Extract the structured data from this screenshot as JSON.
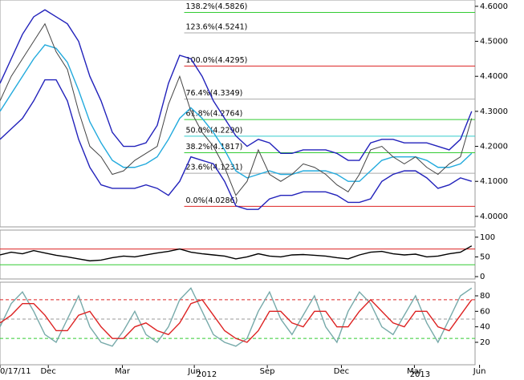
{
  "chart_data": [
    {
      "type": "line",
      "xlim": [
        0,
        42.3
      ],
      "ylim": [
        3.97,
        4.618
      ],
      "yticks": [
        {
          "value": 4.0,
          "label": "4.0000"
        },
        {
          "value": 4.1,
          "label": "4.1000"
        },
        {
          "value": 4.2,
          "label": "4.2000"
        },
        {
          "value": 4.3,
          "label": "4.3000"
        },
        {
          "value": 4.4,
          "label": "4.4000"
        },
        {
          "value": 4.5,
          "label": "4.5000"
        },
        {
          "value": 4.6,
          "label": "4.6000"
        }
      ],
      "xticks": [
        {
          "value": 0,
          "label": "0/17/11"
        },
        {
          "value": 4.3,
          "label": "Dec"
        },
        {
          "value": 10.9,
          "label": "Mar"
        },
        {
          "value": 17.3,
          "label": "Jun"
        },
        {
          "value": 23.8,
          "label": "Sep"
        },
        {
          "value": 30.4,
          "label": "Dec"
        },
        {
          "value": 36.9,
          "label": "Mar"
        },
        {
          "value": 42.7,
          "label": "Jun"
        }
      ],
      "xticks2": [
        {
          "value": 18.4,
          "label": "2012"
        },
        {
          "value": 37.4,
          "label": "2013"
        }
      ],
      "fib_start_x": 16.4,
      "fib_levels": [
        {
          "value": 4.5826,
          "label": "138.2%(4.5826)",
          "color": "#33cc33"
        },
        {
          "value": 4.5241,
          "label": "123.6%(4.5241)",
          "color": "#aaaaaa"
        },
        {
          "value": 4.4295,
          "label": "100.0%(4.4295)",
          "color": "#dd2222"
        },
        {
          "value": 4.3349,
          "label": "76.4%(4.3349)",
          "color": "#aaaaaa"
        },
        {
          "value": 4.2764,
          "label": "61.8%(4.2764)",
          "color": "#33cc33"
        },
        {
          "value": 4.229,
          "label": "50.0%(4.2290)",
          "color": "#33cccc"
        },
        {
          "value": 4.1817,
          "label": "38.2%(4.1817)",
          "color": "#33cc33"
        },
        {
          "value": 4.1231,
          "label": "23.6%(4.1231)",
          "color": "#aaaaaa"
        },
        {
          "value": 4.0286,
          "label": "0.0%(4.0286)",
          "color": "#dd2222"
        }
      ],
      "series": [
        {
          "color": "#2222bb",
          "values": [
            4.38,
            4.45,
            4.52,
            4.57,
            4.59,
            4.57,
            4.55,
            4.5,
            4.4,
            4.33,
            4.24,
            4.2,
            4.2,
            4.21,
            4.26,
            4.38,
            4.46,
            4.45,
            4.4,
            4.33,
            4.28,
            4.23,
            4.2,
            4.22,
            4.21,
            4.18,
            4.18,
            4.19,
            4.19,
            4.19,
            4.18,
            4.16,
            4.16,
            4.21,
            4.22,
            4.22,
            4.21,
            4.21,
            4.21,
            4.2,
            4.19,
            4.22,
            4.3
          ]
        },
        {
          "color": "#2222bb",
          "values": [
            4.22,
            4.25,
            4.28,
            4.33,
            4.39,
            4.39,
            4.33,
            4.22,
            4.14,
            4.09,
            4.08,
            4.08,
            4.08,
            4.09,
            4.08,
            4.06,
            4.1,
            4.17,
            4.16,
            4.15,
            4.1,
            4.03,
            4.02,
            4.02,
            4.05,
            4.06,
            4.06,
            4.07,
            4.07,
            4.07,
            4.06,
            4.04,
            4.04,
            4.05,
            4.1,
            4.12,
            4.13,
            4.13,
            4.11,
            4.08,
            4.09,
            4.11,
            4.1
          ]
        },
        {
          "color": "#22aadd",
          "values": [
            4.3,
            4.35,
            4.4,
            4.45,
            4.49,
            4.48,
            4.44,
            4.36,
            4.27,
            4.21,
            4.16,
            4.14,
            4.14,
            4.15,
            4.17,
            4.22,
            4.28,
            4.31,
            4.28,
            4.24,
            4.19,
            4.13,
            4.11,
            4.12,
            4.13,
            4.12,
            4.12,
            4.13,
            4.13,
            4.13,
            4.12,
            4.1,
            4.1,
            4.13,
            4.16,
            4.17,
            4.17,
            4.17,
            4.16,
            4.14,
            4.14,
            4.15,
            4.18
          ]
        },
        {
          "color": "#444444",
          "values": [
            4.33,
            4.4,
            4.45,
            4.5,
            4.55,
            4.47,
            4.42,
            4.3,
            4.2,
            4.17,
            4.12,
            4.13,
            4.16,
            4.18,
            4.2,
            4.32,
            4.4,
            4.3,
            4.24,
            4.2,
            4.14,
            4.06,
            4.1,
            4.19,
            4.12,
            4.1,
            4.12,
            4.15,
            4.14,
            4.12,
            4.09,
            4.07,
            4.12,
            4.19,
            4.2,
            4.17,
            4.15,
            4.17,
            4.14,
            4.12,
            4.15,
            4.17,
            4.28
          ]
        }
      ]
    },
    {
      "type": "line",
      "xlim": [
        0,
        42.3
      ],
      "ylim": [
        -6,
        118
      ],
      "yticks": [
        0,
        50,
        100
      ],
      "ref_lines": [
        {
          "value": 70,
          "color": "#dd2222"
        },
        {
          "value": 30,
          "color": "#33cc33"
        }
      ],
      "series": [
        {
          "color": "#000000",
          "values": [
            55,
            62,
            58,
            66,
            60,
            54,
            50,
            45,
            40,
            42,
            48,
            52,
            50,
            55,
            60,
            64,
            70,
            62,
            58,
            55,
            52,
            45,
            50,
            58,
            52,
            50,
            55,
            56,
            54,
            52,
            48,
            45,
            55,
            62,
            64,
            58,
            55,
            57,
            50,
            52,
            58,
            62,
            78
          ]
        }
      ]
    },
    {
      "type": "line",
      "xlim": [
        0,
        42.3
      ],
      "ylim": [
        -9,
        97.6
      ],
      "yticks": [
        20,
        40,
        60,
        80
      ],
      "ref_lines": [
        {
          "value": 75,
          "color": "#dd2222"
        },
        {
          "value": 50,
          "color": "#999999"
        },
        {
          "value": 25,
          "color": "#33cc33"
        }
      ],
      "series": [
        {
          "color": "#77aaaa",
          "values": [
            40,
            70,
            85,
            60,
            30,
            20,
            50,
            80,
            40,
            20,
            15,
            35,
            60,
            30,
            20,
            40,
            75,
            90,
            60,
            30,
            20,
            15,
            25,
            60,
            85,
            50,
            30,
            55,
            80,
            40,
            20,
            60,
            85,
            70,
            40,
            30,
            55,
            80,
            45,
            20,
            50,
            80,
            90
          ]
        },
        {
          "color": "#dd2222",
          "values": [
            45,
            55,
            70,
            70,
            55,
            35,
            35,
            55,
            60,
            40,
            25,
            25,
            40,
            45,
            35,
            30,
            45,
            70,
            75,
            55,
            35,
            25,
            20,
            35,
            60,
            60,
            45,
            40,
            60,
            60,
            40,
            40,
            60,
            75,
            60,
            45,
            40,
            60,
            60,
            40,
            35,
            55,
            75
          ]
        }
      ]
    }
  ]
}
